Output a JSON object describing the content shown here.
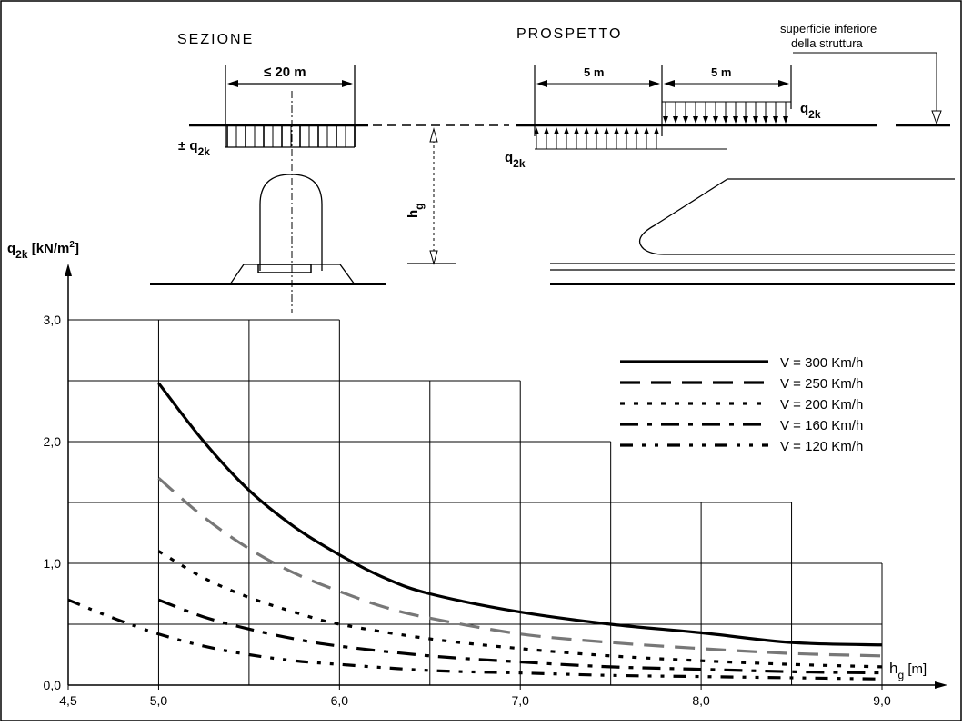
{
  "diagram": {
    "section_title": "SEZIONE",
    "elevation_title": "PROSPETTO",
    "width_label": "≤ 20 m",
    "span_label_left": "5 m",
    "span_label_right": "5 m",
    "surface_label_line1": "superficie inferiore",
    "surface_label_line2": "della struttura",
    "load_label_section_prefix": "± q",
    "load_sub": "2k",
    "load_label_q": "q",
    "height_label": "h",
    "height_sub": "g"
  },
  "chart_data": {
    "type": "line",
    "ylabel_main": "q",
    "ylabel_sub": "2k",
    "ylabel_units": " [kN/m",
    "ylabel_sup": "2",
    "ylabel_close": "]",
    "xlabel_main": "h",
    "xlabel_sub": "g",
    "xlabel_units": " [m]",
    "xlim": [
      4.5,
      9.0
    ],
    "ylim": [
      0.0,
      3.0
    ],
    "x_ticks": [
      "4,5",
      "5,0",
      "6,0",
      "7,0",
      "8,0",
      "9,0"
    ],
    "x_tick_values": [
      4.5,
      5.0,
      6.0,
      7.0,
      8.0,
      9.0
    ],
    "y_ticks": [
      "0,0",
      "1,0",
      "2,0",
      "3,0"
    ],
    "y_tick_values": [
      0.0,
      1.0,
      2.0,
      3.0
    ],
    "series": [
      {
        "name": "V = 300 Km/h",
        "style": "solid",
        "color": "#000000",
        "x": [
          5.0,
          5.25,
          5.5,
          5.75,
          6.0,
          6.25,
          6.5,
          7.0,
          7.5,
          8.0,
          8.5,
          9.0
        ],
        "y": [
          2.48,
          2.0,
          1.6,
          1.3,
          1.07,
          0.88,
          0.75,
          0.6,
          0.5,
          0.43,
          0.35,
          0.33
        ]
      },
      {
        "name": "V = 250 Km/h",
        "style": "long-dash",
        "color": "#777777",
        "x": [
          5.0,
          5.25,
          5.5,
          5.75,
          6.0,
          6.25,
          6.5,
          7.0,
          7.5,
          8.0,
          8.5,
          9.0
        ],
        "y": [
          1.7,
          1.38,
          1.12,
          0.92,
          0.77,
          0.64,
          0.55,
          0.42,
          0.35,
          0.3,
          0.26,
          0.24
        ]
      },
      {
        "name": "V = 200 Km/h",
        "style": "dotted",
        "color": "#000000",
        "x": [
          5.0,
          5.25,
          5.5,
          5.75,
          6.0,
          6.5,
          7.0,
          7.5,
          8.0,
          8.5,
          9.0
        ],
        "y": [
          1.1,
          0.88,
          0.72,
          0.6,
          0.5,
          0.38,
          0.3,
          0.24,
          0.2,
          0.17,
          0.15
        ]
      },
      {
        "name": "V = 160 Km/h",
        "style": "dash-dot",
        "color": "#000000",
        "x": [
          5.0,
          5.25,
          5.5,
          5.75,
          6.0,
          6.5,
          7.0,
          7.5,
          8.0,
          8.5,
          9.0
        ],
        "y": [
          0.7,
          0.56,
          0.46,
          0.38,
          0.32,
          0.24,
          0.19,
          0.15,
          0.13,
          0.11,
          0.1
        ]
      },
      {
        "name": "V = 120 Km/h",
        "style": "dash-dot-dot",
        "color": "#000000",
        "x": [
          4.5,
          4.75,
          5.0,
          5.25,
          5.5,
          5.75,
          6.0,
          6.5,
          7.0,
          7.5,
          8.0,
          8.5,
          9.0
        ],
        "y": [
          0.7,
          0.55,
          0.42,
          0.32,
          0.25,
          0.2,
          0.17,
          0.12,
          0.1,
          0.08,
          0.07,
          0.06,
          0.05
        ]
      }
    ],
    "grid_steps": [
      {
        "x_start": 5.0,
        "x_end": 6.0,
        "y": 3.0
      },
      {
        "x_start": 6.0,
        "x_end": 6.5,
        "y": 2.5
      },
      {
        "x_start": 6.5,
        "x_end": 7.0,
        "y": 2.5
      },
      {
        "x_start": 7.0,
        "x_end": 7.5,
        "y": 2.0
      },
      {
        "x_start": 7.5,
        "x_end": 8.5,
        "y": 1.5
      },
      {
        "x_start": 8.5,
        "x_end": 9.0,
        "y": 1.0
      }
    ],
    "legend_position": "top-right"
  }
}
